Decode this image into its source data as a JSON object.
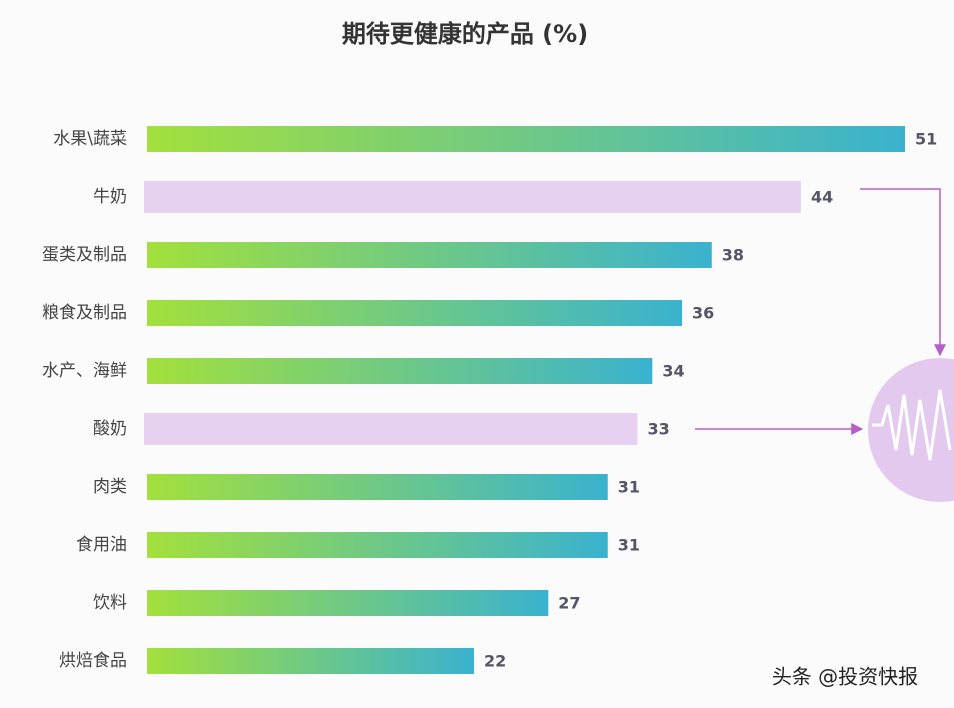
{
  "chart_data": {
    "type": "bar",
    "orientation": "horizontal",
    "title": "期待更健康的产品 (%)",
    "categories": [
      "水果\\蔬菜",
      "牛奶",
      "蛋类及制品",
      "粮食及制品",
      "水产、海鲜",
      "酸奶",
      "肉类",
      "食用油",
      "饮料",
      "烘焙食品"
    ],
    "values": [
      51,
      44,
      38,
      36,
      34,
      33,
      31,
      31,
      27,
      22
    ],
    "bar_colors": [
      [
        "#a3e03c",
        "#3ab2cf"
      ],
      "#e6d2f0",
      [
        "#a3e03c",
        "#3ab2cf"
      ],
      [
        "#a3e03c",
        "#3ab2cf"
      ],
      [
        "#a3e03c",
        "#3ab2cf"
      ],
      "#e6d2f0",
      [
        "#a3e03c",
        "#3ab2cf"
      ],
      [
        "#a3e03c",
        "#3ab2cf"
      ],
      [
        "#a3e03c",
        "#3ab2cf"
      ],
      [
        "#a3e03c",
        "#3ab2cf"
      ]
    ]
  },
  "watermark": "头条 @投资快报"
}
